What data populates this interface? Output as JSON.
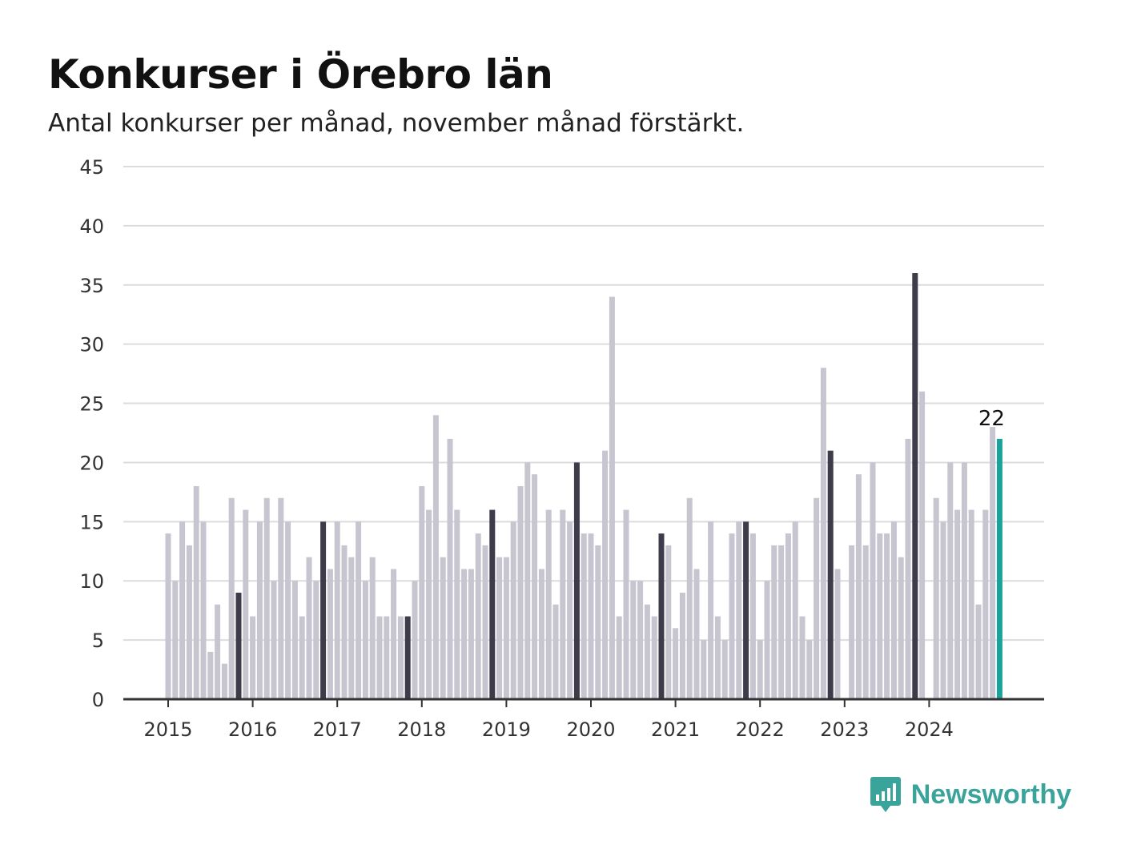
{
  "chart_data": {
    "type": "bar",
    "title": "Konkurser i Örebro län",
    "subtitle": "Antal konkurser per månad, november månad förstärkt.",
    "xlabel": "",
    "ylabel": "",
    "ylim": [
      0,
      45
    ],
    "yticks": [
      "0",
      "5",
      "10",
      "15",
      "20",
      "25",
      "30",
      "35",
      "40",
      "45"
    ],
    "xticks": [
      "2015",
      "2016",
      "2017",
      "2018",
      "2019",
      "2020",
      "2021",
      "2022",
      "2023",
      "2024"
    ],
    "grid": true,
    "start_period": "2015-01",
    "end_period": "2024-11",
    "values": [
      14,
      10,
      15,
      13,
      18,
      15,
      4,
      8,
      3,
      17,
      9,
      16,
      7,
      15,
      17,
      10,
      17,
      15,
      10,
      7,
      12,
      10,
      15,
      11,
      15,
      13,
      12,
      15,
      10,
      12,
      7,
      7,
      11,
      7,
      7,
      10,
      18,
      16,
      24,
      12,
      22,
      16,
      11,
      11,
      14,
      13,
      16,
      12,
      12,
      15,
      18,
      20,
      19,
      11,
      16,
      8,
      16,
      15,
      20,
      14,
      14,
      13,
      21,
      34,
      7,
      16,
      10,
      10,
      8,
      7,
      14,
      13,
      6,
      9,
      17,
      11,
      5,
      15,
      7,
      5,
      14,
      15,
      15,
      14,
      5,
      10,
      13,
      13,
      14,
      15,
      7,
      5,
      17,
      28,
      21,
      11,
      0,
      13,
      19,
      13,
      20,
      14,
      14,
      15,
      12,
      22,
      36,
      26,
      0,
      17,
      15,
      20,
      16,
      20,
      16,
      8,
      16,
      23,
      22
    ],
    "highlight_month": "november",
    "latest_value_label": "22",
    "colors": {
      "bar": "#c6c5d0",
      "november": "#3d3c4a",
      "latest": "#1aa39a",
      "grid": "#dcdcdc",
      "axis": "#333333"
    }
  },
  "brand": {
    "name": "Newsworthy",
    "icon": "newsworthy-logo-icon",
    "color": "#3aa39a"
  }
}
